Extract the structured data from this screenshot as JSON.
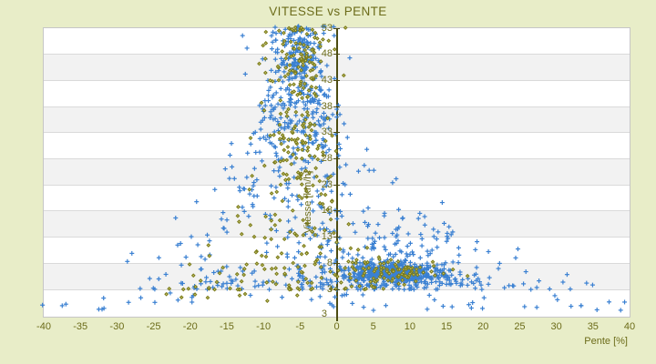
{
  "chart_data": {
    "type": "scatter",
    "title": "VITESSE vs PENTE",
    "xlabel": "Pente [%]",
    "ylabel": "Vitesse [km/h]",
    "xlim": [
      -40,
      40
    ],
    "ylim": [
      -2.2,
      53
    ],
    "x_ticks": [
      -40,
      -35,
      -30,
      -25,
      -20,
      -15,
      -10,
      -5,
      0,
      5,
      10,
      15,
      20,
      25,
      30,
      35,
      40
    ],
    "y_ticks": [
      3,
      8,
      13,
      18,
      23,
      28,
      33,
      38,
      43,
      48,
      53
    ],
    "y_axis_bottom_label": "3",
    "y_axis_position_x": 0,
    "grid": "horizontal-bands-every-5",
    "legend": "none",
    "clipping": "points-drawn-outside-plot-area",
    "colors": {
      "page_background": "#e8edc8",
      "plot_background": "#ffffff",
      "band": "#f2f2f2",
      "gridline": "#dadada",
      "plot_border": "#c6c6c6",
      "axis_line": "#4c4c12",
      "text": "#6c6c1a",
      "series_blue": "#3a80d2",
      "series_olive": "#7c7c1c",
      "olive_center_highlight": "#d2d27a"
    },
    "series": [
      {
        "name": "blue",
        "marker": "plus",
        "color": "#3a80d2",
        "clusters": [
          {
            "type": "envelope",
            "n": 500,
            "yMin": 3,
            "yMax": 53,
            "yPow": 2.2,
            "cB": 0,
            "cT": -5.5,
            "wLb": 36,
            "wLt": 3.5,
            "wLp": 1.5,
            "wRb": 40,
            "wRt": 2,
            "wRp": 2.2
          },
          {
            "type": "gauss",
            "n": 120,
            "mx": -5.5,
            "my": 48.5,
            "sx": 2.6,
            "sy": 3.2,
            "yClampMax": 53.4
          },
          {
            "type": "gauss",
            "n": 130,
            "mx": -5,
            "my": 36,
            "sx": 3,
            "sy": 5.5
          },
          {
            "type": "gauss",
            "n": 400,
            "mx": 7,
            "my": 6.2,
            "sx": 3.2,
            "sy": 1.1,
            "yClampMin": 3.6
          },
          {
            "type": "gauss",
            "n": 110,
            "mx": 12,
            "my": 5.3,
            "sx": 4,
            "sy": 0.9,
            "yClampMin": 3.7
          },
          {
            "type": "gauss",
            "n": 80,
            "mx": 9,
            "my": 11.5,
            "sx": 5,
            "sy": 3.5,
            "yClampMin": 3.6
          },
          {
            "type": "uniform",
            "n": 52,
            "x0": -43,
            "x1": 43,
            "y0": -1,
            "y1": 2.6
          }
        ]
      },
      {
        "name": "olive",
        "marker": "diamond",
        "color": "#7c7c1c",
        "clusters": [
          {
            "type": "envelope",
            "n": 240,
            "yMin": 3,
            "yMax": 53,
            "yPow": 2.0,
            "cB": -5,
            "cT": -5,
            "wLb": 21,
            "wLt": 3,
            "wLp": 1.2,
            "wRb": 17,
            "wRt": 2.5,
            "wRp": 2.4
          },
          {
            "type": "gauss",
            "n": 65,
            "mx": -5,
            "my": 47.5,
            "sx": 2.3,
            "sy": 3.8,
            "yClampMax": 53.2
          },
          {
            "type": "gauss",
            "n": 55,
            "mx": -5.5,
            "my": 30,
            "sx": 2.8,
            "sy": 7,
            "yClampMin": 3.5
          },
          {
            "type": "gauss",
            "n": 85,
            "mx": 7.5,
            "my": 6.4,
            "sx": 3,
            "sy": 1.05,
            "yClampMin": 3.8
          },
          {
            "type": "uniform",
            "n": 8,
            "x0": -25,
            "x1": -3,
            "y0": 0.5,
            "y1": 2.5
          }
        ]
      }
    ]
  }
}
